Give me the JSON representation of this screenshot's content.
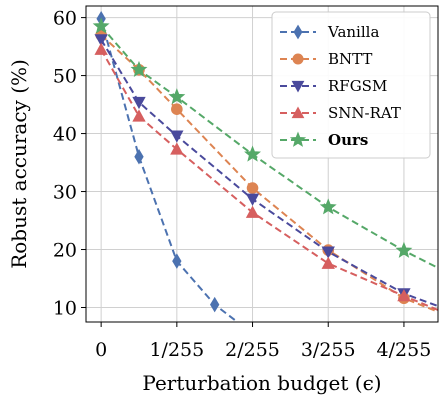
{
  "chart_data": {
    "type": "line",
    "title": "",
    "xlabel": "Perturbation budget (ϵ)",
    "ylabel": "Robust accuracy (%)",
    "x_ticks": [
      "0",
      "1/255",
      "2/255",
      "3/255",
      "4/255"
    ],
    "y_ticks": [
      "10",
      "20",
      "30",
      "40",
      "50",
      "60"
    ],
    "xlim": [
      -0.2,
      4.45
    ],
    "ylim": [
      7.5,
      62
    ],
    "grid": true,
    "legend_position": "top-right",
    "series": [
      {
        "name": "Vanilla",
        "color": "#4c72b0",
        "marker": "thin_diamond",
        "x": [
          0,
          0.5,
          1,
          1.5,
          2
        ],
        "y": [
          59.8,
          36.0,
          18.0,
          10.5,
          5.5
        ]
      },
      {
        "name": "BNTT",
        "color": "#dd8452",
        "marker": "circle",
        "x": [
          0,
          0.5,
          1,
          2,
          3,
          4,
          4.5
        ],
        "y": [
          57.0,
          51.0,
          44.2,
          30.6,
          19.9,
          11.6,
          9.0
        ]
      },
      {
        "name": "RFGSM",
        "color": "#4a4a9c",
        "marker": "triangle_down",
        "x": [
          0,
          0.5,
          1,
          2,
          3,
          4,
          4.5
        ],
        "y": [
          56.2,
          45.4,
          39.6,
          28.7,
          19.6,
          12.4,
          10.0
        ]
      },
      {
        "name": "SNN-RAT",
        "color": "#d65f5f",
        "marker": "triangle_up",
        "x": [
          0,
          0.5,
          1,
          2,
          3,
          4,
          4.5
        ],
        "y": [
          54.5,
          43.0,
          37.3,
          26.4,
          17.6,
          12.0,
          9.3
        ]
      },
      {
        "name": "Ours",
        "color": "#55a868",
        "marker": "star",
        "bold": true,
        "x": [
          0,
          0.5,
          1,
          2,
          3,
          4,
          4.5
        ],
        "y": [
          58.5,
          51.0,
          46.3,
          36.4,
          27.3,
          19.8,
          16.5
        ]
      }
    ]
  }
}
